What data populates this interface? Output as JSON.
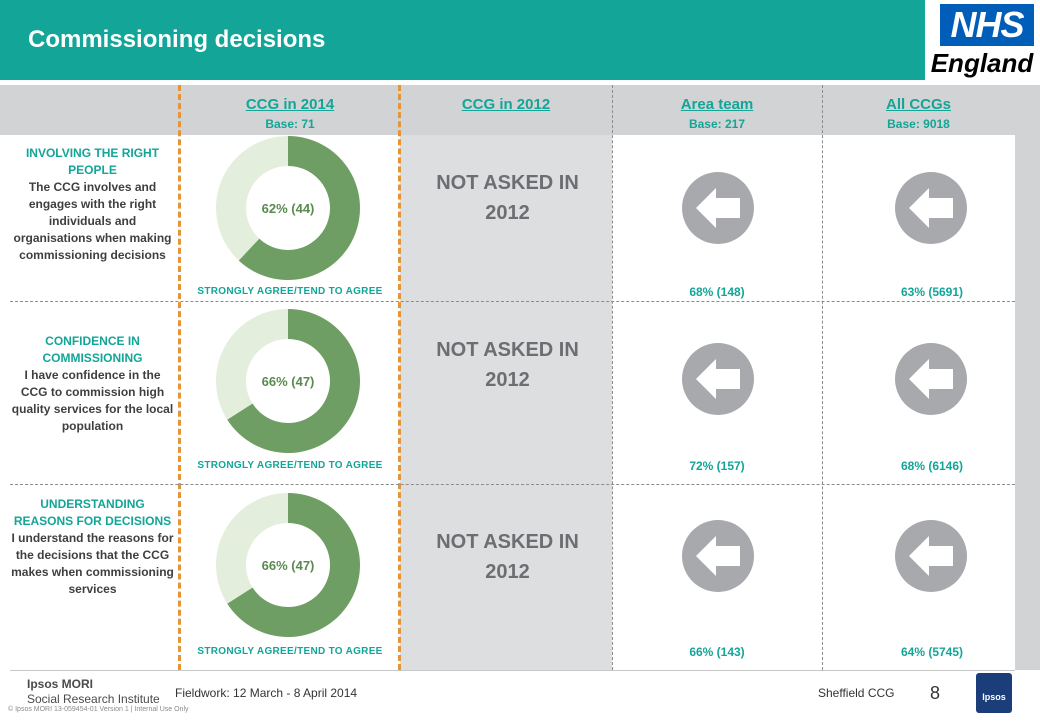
{
  "header": {
    "title": "Commissioning decisions"
  },
  "logo": {
    "nhs": "NHS",
    "region": "England"
  },
  "columns": [
    {
      "title": "CCG in 2014",
      "base": "Base: 71"
    },
    {
      "title": "CCG in 2012",
      "base": ""
    },
    {
      "title": "Area team",
      "base": "Base: 217"
    },
    {
      "title": "All CCGs",
      "base": "Base: 9018"
    }
  ],
  "rows": [
    {
      "caption": "INVOLVING THE RIGHT PEOPLE",
      "statement": "The CCG involves and engages with the right individuals and organisations when making commissioning decisions",
      "donut_label": "62% (44)",
      "agree_label": "STRONGLY AGREE/TEND TO AGREE",
      "not_asked": "NOT ASKED IN 2012",
      "area_team": "68% (148)",
      "all_ccgs": "63% (5691)"
    },
    {
      "caption": "CONFIDENCE IN COMMISSIONING",
      "statement": "I have confidence in the CCG to commission high quality services for the local population",
      "donut_label": "66% (47)",
      "agree_label": "STRONGLY AGREE/TEND TO AGREE",
      "not_asked": "NOT ASKED IN 2012",
      "area_team": "72% (157)",
      "all_ccgs": "68% (6146)"
    },
    {
      "caption": "UNDERSTANDING REASONS FOR DECISIONS",
      "statement": "I understand the reasons for the decisions that the CCG makes when commissioning services",
      "donut_label": "66% (47)",
      "agree_label": "STRONGLY AGREE/TEND TO AGREE",
      "not_asked": "NOT ASKED IN 2012",
      "area_team": "66% (143)",
      "all_ccgs": "64% (5745)"
    }
  ],
  "chart_data": [
    {
      "type": "pie",
      "categories": [
        "Strongly agree/tend to agree",
        "Other"
      ],
      "values": [
        62,
        38
      ]
    },
    {
      "type": "pie",
      "categories": [
        "Strongly agree/tend to agree",
        "Other"
      ],
      "values": [
        66,
        34
      ]
    },
    {
      "type": "pie",
      "categories": [
        "Strongly agree/tend to agree",
        "Other"
      ],
      "values": [
        66,
        34
      ]
    }
  ],
  "colors": {
    "teal": "#13a597",
    "donut_fill": "#6f9e64",
    "donut_rest": "#e3efdc",
    "arrow_grey": "#a7a9ac",
    "orange_divider": "#e59437"
  },
  "icons": {
    "comparison": "left-arrow-icon"
  },
  "footer": {
    "org": "Ipsos MORI",
    "institute": "Social Research Institute",
    "copyright": "© Ipsos MORI     13-059454-01  Version 1 | Internal Use Only",
    "fieldwork": "Fieldwork: 12 March - 8 April 2014",
    "ccg": "Sheffield CCG",
    "page": "8",
    "ipsos_logo": "Ipsos"
  }
}
